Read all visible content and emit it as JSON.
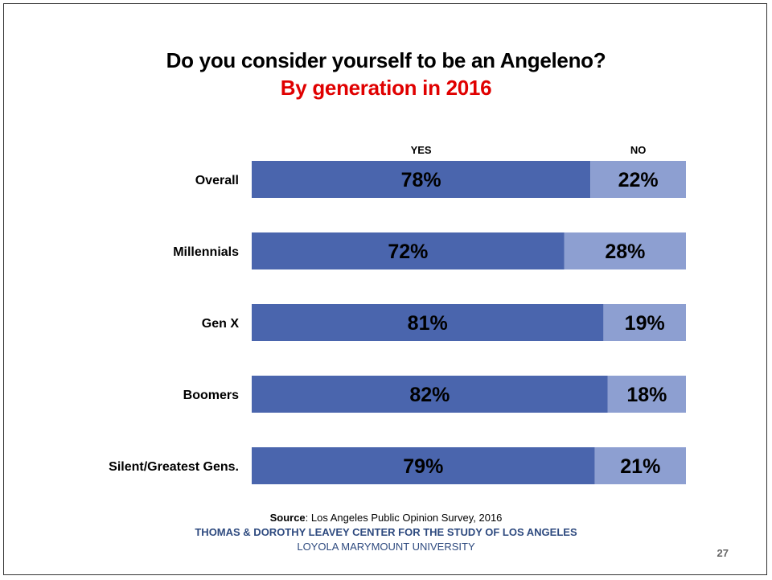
{
  "slide": {
    "title": "Do you consider yourself to be an Angeleno?",
    "subtitle": "By generation in 2016",
    "subtitle_color": "#e00000",
    "source_label": "Source",
    "source_text": ": Los Angeles Public Opinion Survey, 2016",
    "org": "THOMAS & DOROTHY LEAVEY CENTER FOR THE STUDY OF LOS ANGELES",
    "org_color": "#2e4a7f",
    "university": "LOYOLA MARYMOUNT UNIVERSITY",
    "university_color": "#2e4a7f",
    "page_number": "27"
  },
  "chart_data": {
    "type": "bar",
    "orientation": "horizontal",
    "stacked": true,
    "percent_stacked": true,
    "categories": [
      "Overall",
      "Millennials",
      "Gen X",
      "Boomers",
      "Silent/Greatest Gens."
    ],
    "series": [
      {
        "name": "YES",
        "values": [
          78,
          72,
          81,
          82,
          79
        ],
        "labels": [
          "78%",
          "72%",
          "81%",
          "82%",
          "79%"
        ],
        "color": "#4a65ad"
      },
      {
        "name": "NO",
        "values": [
          22,
          28,
          19,
          18,
          21
        ],
        "labels": [
          "22%",
          "28%",
          "19%",
          "18%",
          "21%"
        ],
        "color": "#8d9fd1"
      }
    ],
    "xlim": [
      0,
      100
    ],
    "grid": false,
    "legend": "top"
  }
}
